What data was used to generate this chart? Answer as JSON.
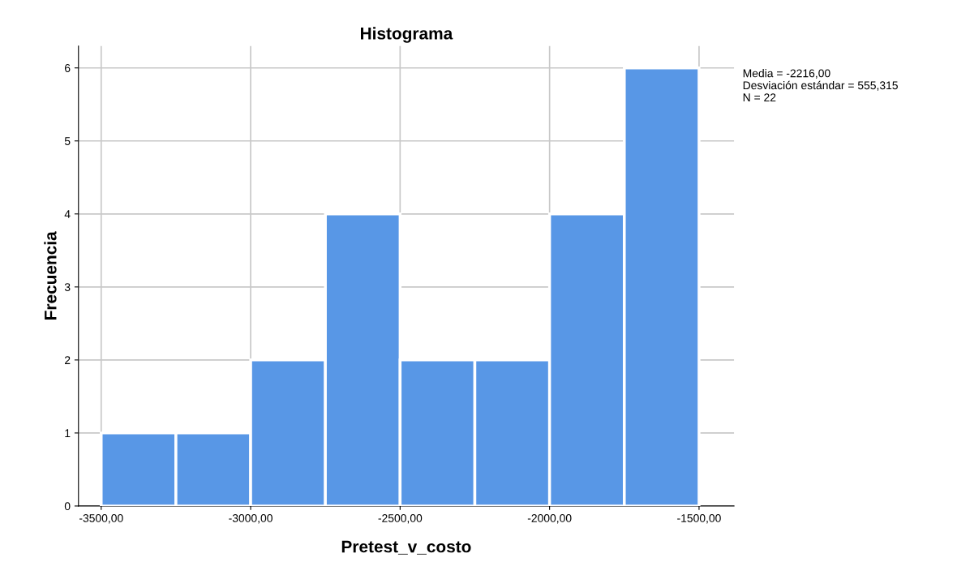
{
  "chart_data": {
    "type": "histogram",
    "title": "Histograma",
    "xlabel": "Pretest_v_costo",
    "ylabel": "Frecuencia",
    "bins": [
      -3500,
      -3250,
      -3000,
      -2750,
      -2500,
      -2250,
      -2000,
      -1750,
      -1500
    ],
    "values": [
      1,
      1,
      2,
      4,
      2,
      2,
      4,
      6
    ],
    "color": "#5897e6",
    "xlim": [
      -3576,
      -1383
    ],
    "ylim": [
      0,
      6.3
    ],
    "xticks": [
      {
        "value": -3500,
        "label": "-3500,00"
      },
      {
        "value": -3000,
        "label": "-3000,00"
      },
      {
        "value": -2500,
        "label": "-2500,00"
      },
      {
        "value": -2000,
        "label": "-2000,00"
      },
      {
        "value": -1500,
        "label": "-1500,00"
      }
    ],
    "yticks": [
      0,
      1,
      2,
      3,
      4,
      5,
      6
    ],
    "grid": true,
    "annotations": [
      "Media = -2216,00",
      "Desviación estándar = 555,315",
      "N = 22"
    ]
  }
}
